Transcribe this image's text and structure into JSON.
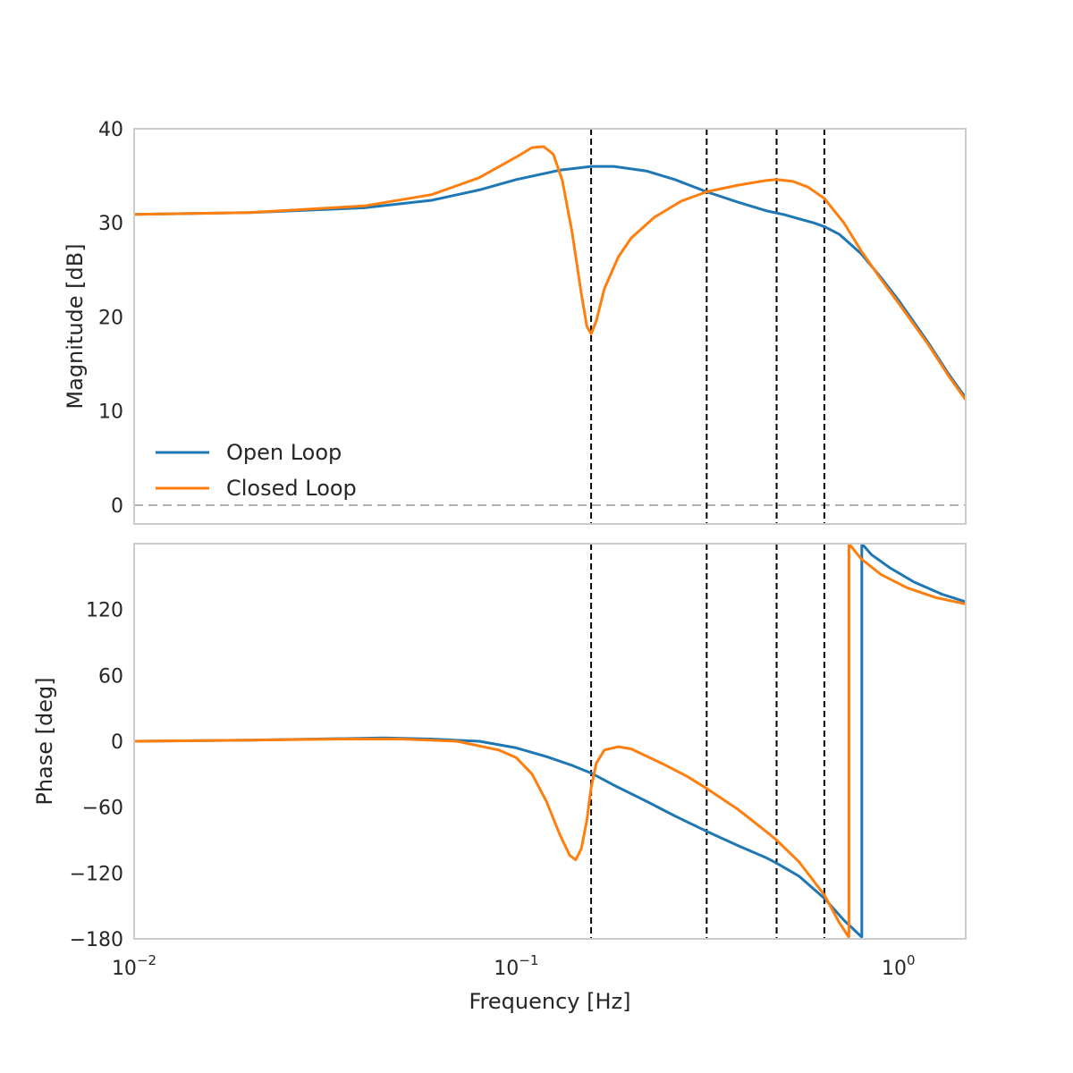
{
  "chart_data": {
    "type": "line",
    "x_scale": "log",
    "xlim": [
      0.01,
      1.5
    ],
    "xlabel": "Frequency [Hz]",
    "x_ticks": [
      {
        "value": 0.01,
        "base": "10",
        "exp": "−2"
      },
      {
        "value": 0.1,
        "base": "10",
        "exp": "−1"
      },
      {
        "value": 1,
        "base": "10",
        "exp": "0"
      }
    ],
    "colors": {
      "open_loop": "#1f77b4",
      "closed_loop": "#ff7f0e",
      "marker": "#000000",
      "zero_line": "#b0b0b0"
    },
    "vlines": [
      0.157,
      0.315,
      0.48,
      0.64
    ],
    "legend": {
      "placement": "lower-left",
      "entries": [
        "Open Loop",
        "Closed Loop"
      ]
    },
    "panels": [
      {
        "id": "magnitude",
        "ylabel": "Magnitude [dB]",
        "ylim": [
          -2,
          40
        ],
        "y_ticks": [
          "0",
          "10",
          "20",
          "30",
          "40"
        ],
        "y_tick_values": [
          0,
          10,
          20,
          30,
          40
        ],
        "hline": 0,
        "series": [
          {
            "name": "Open Loop",
            "color_key": "open_loop",
            "points": [
              [
                0.01,
                30.9
              ],
              [
                0.02,
                31.1
              ],
              [
                0.04,
                31.6
              ],
              [
                0.06,
                32.4
              ],
              [
                0.08,
                33.5
              ],
              [
                0.1,
                34.6
              ],
              [
                0.13,
                35.6
              ],
              [
                0.157,
                36.0
              ],
              [
                0.18,
                36.0
              ],
              [
                0.22,
                35.5
              ],
              [
                0.26,
                34.6
              ],
              [
                0.315,
                33.3
              ],
              [
                0.38,
                32.2
              ],
              [
                0.45,
                31.3
              ],
              [
                0.5,
                30.9
              ],
              [
                0.6,
                30.0
              ],
              [
                0.64,
                29.6
              ],
              [
                0.7,
                28.8
              ],
              [
                0.8,
                26.7
              ],
              [
                0.9,
                24.2
              ],
              [
                1.0,
                21.8
              ],
              [
                1.2,
                17.2
              ],
              [
                1.35,
                14.0
              ],
              [
                1.5,
                11.4
              ]
            ]
          },
          {
            "name": "Closed Loop",
            "color_key": "closed_loop",
            "points": [
              [
                0.01,
                30.9
              ],
              [
                0.02,
                31.1
              ],
              [
                0.04,
                31.8
              ],
              [
                0.06,
                33.0
              ],
              [
                0.08,
                34.8
              ],
              [
                0.1,
                37.0
              ],
              [
                0.11,
                38.0
              ],
              [
                0.118,
                38.1
              ],
              [
                0.125,
                37.3
              ],
              [
                0.132,
                34.5
              ],
              [
                0.14,
                29.0
              ],
              [
                0.148,
                22.5
              ],
              [
                0.153,
                19.0
              ],
              [
                0.157,
                18.2
              ],
              [
                0.162,
                19.6
              ],
              [
                0.17,
                23.0
              ],
              [
                0.185,
                26.4
              ],
              [
                0.2,
                28.4
              ],
              [
                0.23,
                30.6
              ],
              [
                0.27,
                32.3
              ],
              [
                0.315,
                33.3
              ],
              [
                0.38,
                34.0
              ],
              [
                0.45,
                34.5
              ],
              [
                0.48,
                34.6
              ],
              [
                0.53,
                34.4
              ],
              [
                0.58,
                33.8
              ],
              [
                0.64,
                32.6
              ],
              [
                0.72,
                30.0
              ],
              [
                0.8,
                27.0
              ],
              [
                0.9,
                24.0
              ],
              [
                1.0,
                21.5
              ],
              [
                1.2,
                17.0
              ],
              [
                1.35,
                13.8
              ],
              [
                1.5,
                11.2
              ]
            ]
          }
        ]
      },
      {
        "id": "phase",
        "ylabel": "Phase [deg]",
        "ylim": [
          -180,
          180
        ],
        "y_ticks": [
          "−180",
          "−120",
          "−60",
          "0",
          "60",
          "120"
        ],
        "y_tick_values": [
          -180,
          -120,
          -60,
          0,
          60,
          120
        ],
        "series": [
          {
            "name": "Open Loop",
            "color_key": "open_loop",
            "points": [
              [
                0.01,
                0
              ],
              [
                0.02,
                1
              ],
              [
                0.03,
                2
              ],
              [
                0.045,
                3
              ],
              [
                0.06,
                2
              ],
              [
                0.08,
                0
              ],
              [
                0.1,
                -6
              ],
              [
                0.12,
                -14
              ],
              [
                0.14,
                -22
              ],
              [
                0.157,
                -29
              ],
              [
                0.18,
                -40
              ],
              [
                0.22,
                -55
              ],
              [
                0.26,
                -68
              ],
              [
                0.315,
                -82
              ],
              [
                0.38,
                -95
              ],
              [
                0.45,
                -106
              ],
              [
                0.48,
                -111
              ],
              [
                0.55,
                -123
              ],
              [
                0.64,
                -143
              ],
              [
                0.72,
                -163
              ],
              [
                0.8,
                -178
              ],
              [
                0.802,
                180
              ],
              [
                0.85,
                170
              ],
              [
                0.95,
                158
              ],
              [
                1.1,
                145
              ],
              [
                1.3,
                134
              ],
              [
                1.5,
                127
              ]
            ]
          },
          {
            "name": "Closed Loop",
            "color_key": "closed_loop",
            "points": [
              [
                0.01,
                0
              ],
              [
                0.02,
                1
              ],
              [
                0.035,
                2
              ],
              [
                0.05,
                2
              ],
              [
                0.07,
                0
              ],
              [
                0.09,
                -8
              ],
              [
                0.1,
                -15
              ],
              [
                0.11,
                -30
              ],
              [
                0.12,
                -55
              ],
              [
                0.13,
                -85
              ],
              [
                0.138,
                -104
              ],
              [
                0.143,
                -108
              ],
              [
                0.148,
                -98
              ],
              [
                0.153,
                -72
              ],
              [
                0.157,
                -42
              ],
              [
                0.162,
                -20
              ],
              [
                0.17,
                -8
              ],
              [
                0.185,
                -5
              ],
              [
                0.2,
                -7
              ],
              [
                0.24,
                -20
              ],
              [
                0.28,
                -32
              ],
              [
                0.315,
                -43
              ],
              [
                0.38,
                -62
              ],
              [
                0.45,
                -82
              ],
              [
                0.48,
                -90
              ],
              [
                0.55,
                -110
              ],
              [
                0.64,
                -140
              ],
              [
                0.7,
                -165
              ],
              [
                0.74,
                -178
              ],
              [
                0.742,
                180
              ],
              [
                0.8,
                166
              ],
              [
                0.9,
                152
              ],
              [
                1.05,
                140
              ],
              [
                1.25,
                131
              ],
              [
                1.5,
                125
              ]
            ]
          }
        ]
      }
    ]
  }
}
